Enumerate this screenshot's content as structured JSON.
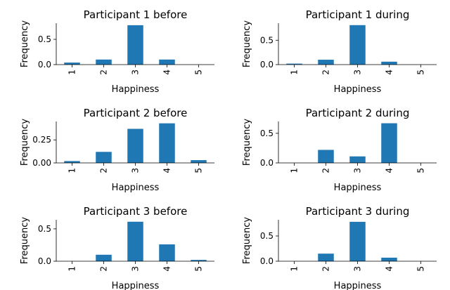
{
  "chart_data": [
    {
      "type": "bar",
      "title": "Participant 1 before",
      "xlabel": "Happiness",
      "ylabel": "Frequency",
      "categories": [
        "1",
        "2",
        "3",
        "4",
        "5"
      ],
      "values": [
        0.04,
        0.1,
        0.78,
        0.1,
        0.0
      ],
      "ylim": [
        0,
        0.82
      ],
      "yticks": [
        0.0,
        0.5
      ],
      "ytick_labels": [
        "0.0",
        "0.5"
      ],
      "color": "#1f77b4",
      "grid": false,
      "legend": "none"
    },
    {
      "type": "bar",
      "title": "Participant 1 during",
      "xlabel": "Happiness",
      "ylabel": "Frequency",
      "categories": [
        "1",
        "2",
        "3",
        "4",
        "5"
      ],
      "values": [
        0.02,
        0.1,
        0.81,
        0.06,
        0.0
      ],
      "ylim": [
        0,
        0.85
      ],
      "yticks": [
        0.0,
        0.5
      ],
      "ytick_labels": [
        "0.0",
        "0.5"
      ],
      "color": "#1f77b4",
      "grid": false,
      "legend": "none"
    },
    {
      "type": "bar",
      "title": "Participant 2 before",
      "xlabel": "Happiness",
      "ylabel": "Frequency",
      "categories": [
        "1",
        "2",
        "3",
        "4",
        "5"
      ],
      "values": [
        0.02,
        0.12,
        0.37,
        0.43,
        0.03
      ],
      "ylim": [
        0,
        0.45
      ],
      "yticks": [
        0.0,
        0.25
      ],
      "ytick_labels": [
        "0.00",
        "0.25"
      ],
      "color": "#1f77b4",
      "grid": false,
      "legend": "none"
    },
    {
      "type": "bar",
      "title": "Participant 2 during",
      "xlabel": "Happiness",
      "ylabel": "Frequency",
      "categories": [
        "1",
        "2",
        "3",
        "4",
        "5"
      ],
      "values": [
        0.0,
        0.22,
        0.11,
        0.67,
        0.0
      ],
      "ylim": [
        0,
        0.7
      ],
      "yticks": [
        0.0,
        0.5
      ],
      "ytick_labels": [
        "0.0",
        "0.5"
      ],
      "color": "#1f77b4",
      "grid": false,
      "legend": "none"
    },
    {
      "type": "bar",
      "title": "Participant 3 before",
      "xlabel": "Happiness",
      "ylabel": "Frequency",
      "categories": [
        "1",
        "2",
        "3",
        "4",
        "5"
      ],
      "values": [
        0.0,
        0.1,
        0.61,
        0.26,
        0.02
      ],
      "ylim": [
        0,
        0.64
      ],
      "yticks": [
        0.0,
        0.5
      ],
      "ytick_labels": [
        "0.0",
        "0.5"
      ],
      "color": "#1f77b4",
      "grid": false,
      "legend": "none"
    },
    {
      "type": "bar",
      "title": "Participant 3 during",
      "xlabel": "Happiness",
      "ylabel": "Frequency",
      "categories": [
        "1",
        "2",
        "3",
        "4",
        "5"
      ],
      "values": [
        0.0,
        0.15,
        0.78,
        0.07,
        0.0
      ],
      "ylim": [
        0,
        0.82
      ],
      "yticks": [
        0.0,
        0.5
      ],
      "ytick_labels": [
        "0.0",
        "0.5"
      ],
      "color": "#1f77b4",
      "grid": false,
      "legend": "none"
    }
  ]
}
